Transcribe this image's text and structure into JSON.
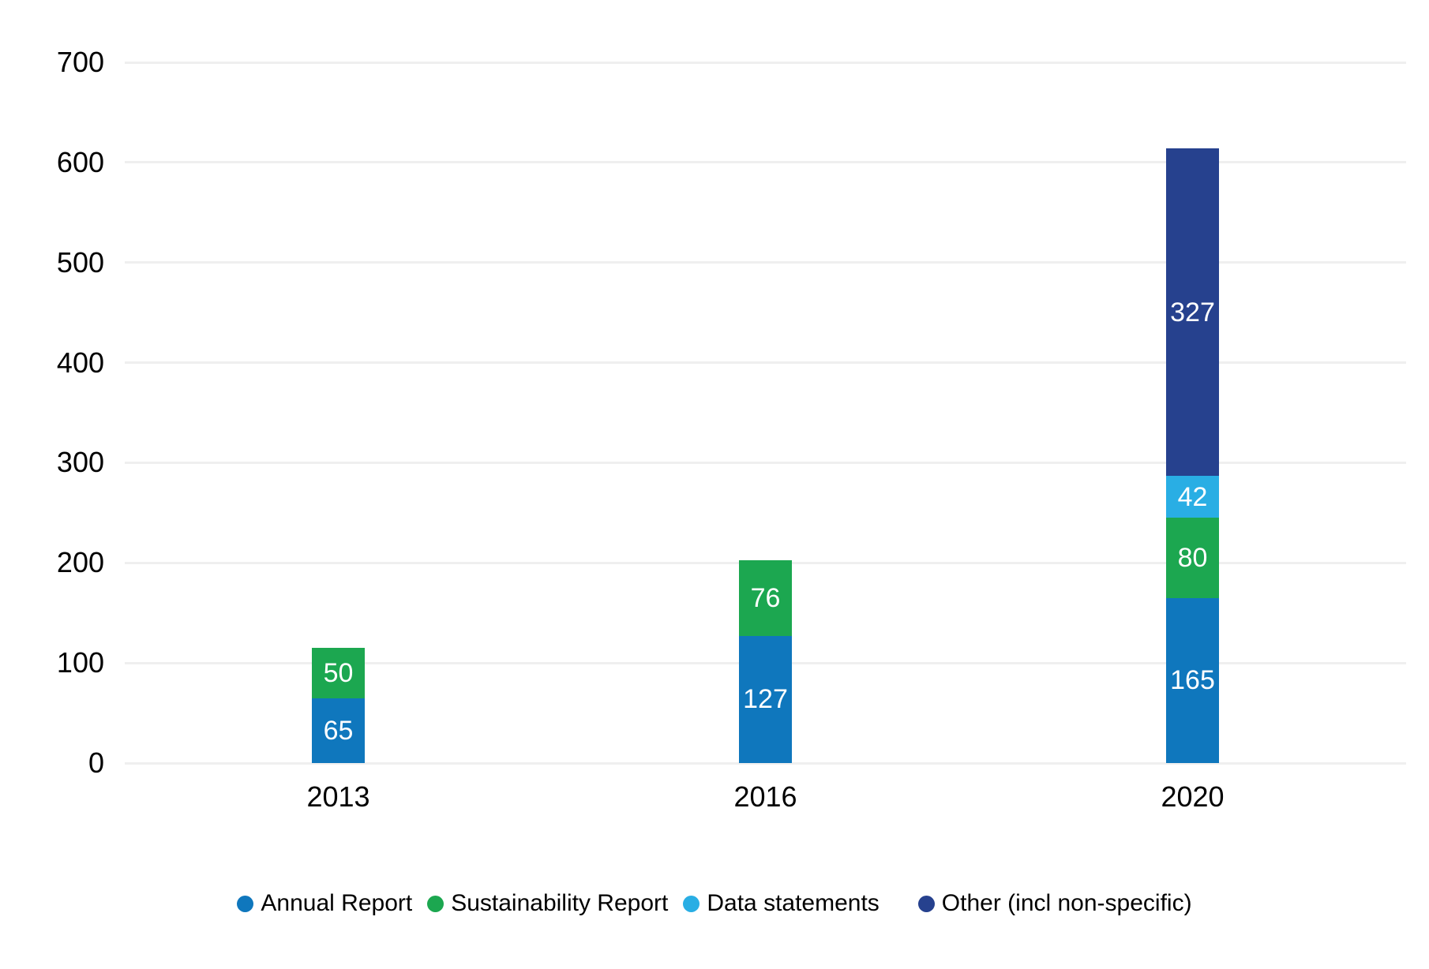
{
  "chart_data": {
    "type": "bar",
    "variant": "stacked-column",
    "title": "",
    "xlabel": "",
    "ylabel": "",
    "categories": [
      "2013",
      "2016",
      "2020"
    ],
    "series": [
      {
        "name": "Annual Report",
        "color": "#0F77BD",
        "values": [
          65,
          127,
          165
        ]
      },
      {
        "name": "Sustainability Report",
        "color": "#1CA750",
        "values": [
          50,
          76,
          80
        ]
      },
      {
        "name": "Data statements",
        "color": "#29AEE4",
        "values": [
          0,
          0,
          42
        ]
      },
      {
        "name": "Other (incl non-specific)",
        "color": "#26418E",
        "values": [
          0,
          0,
          327
        ]
      }
    ],
    "stack_totals": [
      115,
      203,
      614
    ],
    "ylim": [
      0,
      700
    ],
    "yticks": [
      0,
      100,
      200,
      300,
      400,
      500,
      600,
      700
    ],
    "grid": true,
    "gridline_color": "#efefef",
    "data_label_color": "#ffffff",
    "data_labels_hidden_when_zero": true,
    "legend_position": "bottom-center"
  }
}
